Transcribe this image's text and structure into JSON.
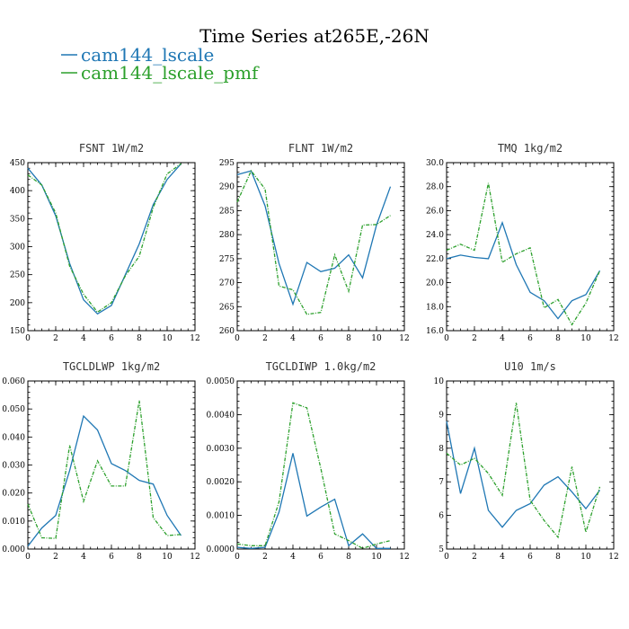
{
  "figure": {
    "title": "Time Series at265E,-26N",
    "legend": [
      {
        "label": "cam144_lscale",
        "color": "#1f77b4"
      },
      {
        "label": "cam144_lscale_pmf",
        "color": "#2ca02c",
        "dash": true
      }
    ]
  },
  "chart_data": [
    {
      "type": "line",
      "title": "FSNT   1W/m2",
      "x": [
        0,
        1,
        2,
        3,
        4,
        5,
        6,
        7,
        8,
        9,
        10,
        11
      ],
      "xlim": [
        0,
        12
      ],
      "ylim": [
        150,
        450
      ],
      "xticks": [
        "0",
        "2",
        "4",
        "6",
        "8",
        "10",
        "12"
      ],
      "yticks": [
        "150",
        "200",
        "250",
        "300",
        "350",
        "400",
        "450"
      ],
      "series": [
        {
          "name": "cam144_lscale",
          "values": [
            440,
            410,
            355,
            270,
            205,
            180,
            195,
            250,
            305,
            375,
            420,
            448
          ]
        },
        {
          "name": "cam144_lscale_pmf",
          "values": [
            428,
            410,
            360,
            265,
            215,
            183,
            200,
            248,
            283,
            370,
            430,
            448
          ]
        }
      ]
    },
    {
      "type": "line",
      "title": "FLNT   1W/m2",
      "x": [
        0,
        1,
        2,
        3,
        4,
        5,
        6,
        7,
        8,
        9,
        10,
        11
      ],
      "xlim": [
        0,
        12
      ],
      "ylim": [
        260,
        295
      ],
      "xticks": [
        "0",
        "2",
        "4",
        "6",
        "8",
        "10",
        "12"
      ],
      "yticks": [
        "260",
        "265",
        "270",
        "275",
        "280",
        "285",
        "290",
        "295"
      ],
      "series": [
        {
          "name": "cam144_lscale",
          "values": [
            292.5,
            293.3,
            286.0,
            274.0,
            265.5,
            274.2,
            272.3,
            273.0,
            275.8,
            271.0,
            282.0,
            290.0
          ]
        },
        {
          "name": "cam144_lscale_pmf",
          "values": [
            286.8,
            293.3,
            289.5,
            269.3,
            268.5,
            263.4,
            263.8,
            275.8,
            268.2,
            282.0,
            282.1,
            284.0
          ]
        }
      ]
    },
    {
      "type": "line",
      "title": "TMQ   1kg/m2",
      "x": [
        0,
        1,
        2,
        3,
        4,
        5,
        6,
        7,
        8,
        9,
        10,
        11
      ],
      "xlim": [
        0,
        12
      ],
      "ylim": [
        16,
        30
      ],
      "xticks": [
        "0",
        "2",
        "4",
        "6",
        "8",
        "10",
        "12"
      ],
      "yticks": [
        "16.0",
        "18.0",
        "20.0",
        "22.0",
        "24.0",
        "26.0",
        "28.0",
        "30.0"
      ],
      "series": [
        {
          "name": "cam144_lscale",
          "values": [
            22.0,
            22.3,
            22.1,
            22.0,
            25.0,
            21.5,
            19.2,
            18.5,
            17.0,
            18.5,
            19.0,
            21.0
          ]
        },
        {
          "name": "cam144_lscale_pmf",
          "values": [
            22.7,
            23.2,
            22.7,
            28.3,
            21.7,
            22.4,
            22.9,
            17.9,
            18.6,
            16.5,
            18.3,
            21.0
          ]
        }
      ]
    },
    {
      "type": "line",
      "title": "TGCLDLWP   1kg/m2",
      "x": [
        0,
        1,
        2,
        3,
        4,
        5,
        6,
        7,
        8,
        9,
        10,
        11
      ],
      "xlim": [
        0,
        12
      ],
      "ylim": [
        0,
        0.06
      ],
      "xticks": [
        "0",
        "2",
        "4",
        "6",
        "8",
        "10",
        "12"
      ],
      "yticks": [
        "0.000",
        "0.010",
        "0.020",
        "0.030",
        "0.040",
        "0.050",
        "0.060"
      ],
      "series": [
        {
          "name": "cam144_lscale",
          "values": [
            0.001,
            0.0075,
            0.012,
            0.028,
            0.0475,
            0.0425,
            0.0305,
            0.028,
            0.0245,
            0.0232,
            0.012,
            0.0048
          ]
        },
        {
          "name": "cam144_lscale_pmf",
          "values": [
            0.016,
            0.004,
            0.0038,
            0.037,
            0.017,
            0.0315,
            0.0225,
            0.0225,
            0.053,
            0.0112,
            0.0048,
            0.0052
          ]
        }
      ]
    },
    {
      "type": "line",
      "title": "TGCLDIWP   1.0kg/m2",
      "x": [
        0,
        1,
        2,
        3,
        4,
        5,
        6,
        7,
        8,
        9,
        10,
        11
      ],
      "xlim": [
        0,
        12
      ],
      "ylim": [
        0,
        0.005
      ],
      "xticks": [
        "0",
        "2",
        "4",
        "6",
        "8",
        "10",
        "12"
      ],
      "yticks": [
        "0.0000",
        "0.0010",
        "0.0020",
        "0.0030",
        "0.0040",
        "0.0050"
      ],
      "series": [
        {
          "name": "cam144_lscale",
          "values": [
            5e-05,
            2e-05,
            5e-05,
            0.0011,
            0.00285,
            0.00098,
            0.00125,
            0.00148,
            0.0001,
            0.00045,
            2e-05,
            2e-05
          ]
        },
        {
          "name": "cam144_lscale_pmf",
          "values": [
            0.00015,
            0.0001,
            0.0001,
            0.0014,
            0.00435,
            0.0042,
            0.0024,
            0.00045,
            0.00025,
            2e-05,
            0.00015,
            0.00025
          ]
        }
      ]
    },
    {
      "type": "line",
      "title": "U10   1m/s",
      "x": [
        0,
        1,
        2,
        3,
        4,
        5,
        6,
        7,
        8,
        9,
        10,
        11
      ],
      "xlim": [
        0,
        12
      ],
      "ylim": [
        5,
        10
      ],
      "xticks": [
        "0",
        "2",
        "4",
        "6",
        "8",
        "10",
        "12"
      ],
      "yticks": [
        "5",
        "6",
        "7",
        "8",
        "9",
        "10"
      ],
      "series": [
        {
          "name": "cam144_lscale",
          "values": [
            8.8,
            6.65,
            8.0,
            6.15,
            5.65,
            6.15,
            6.35,
            6.9,
            7.15,
            6.7,
            6.2,
            6.75
          ]
        },
        {
          "name": "cam144_lscale_pmf",
          "values": [
            7.85,
            7.5,
            7.7,
            7.25,
            6.6,
            9.35,
            6.45,
            5.85,
            5.35,
            7.45,
            5.5,
            6.85
          ]
        }
      ]
    }
  ]
}
